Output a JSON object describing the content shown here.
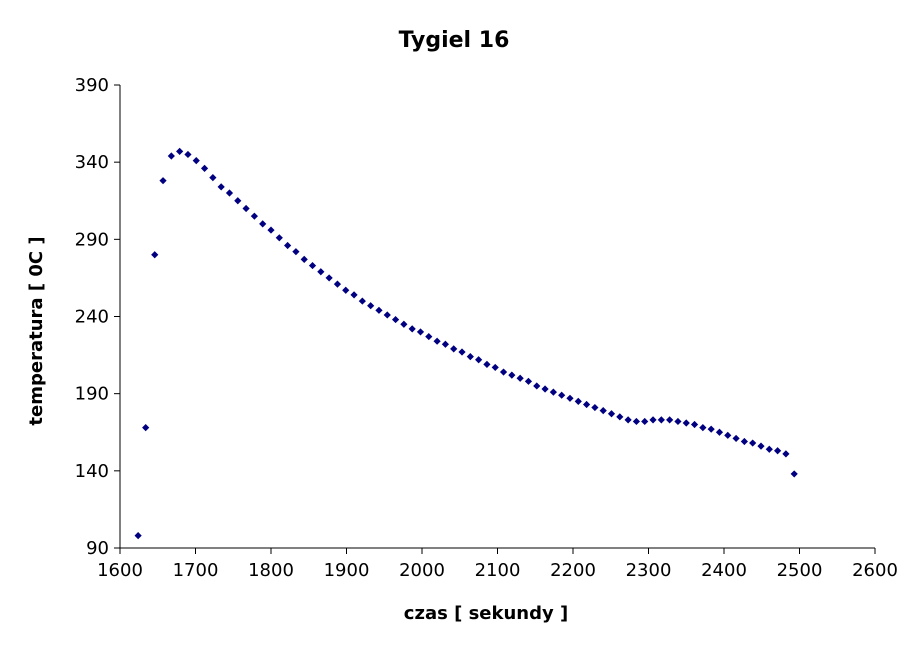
{
  "chart_data": {
    "type": "scatter",
    "title": "Tygiel 16",
    "xlabel": "czas [ sekundy ]",
    "ylabel": "temperatura [ 0C ]",
    "xlim": [
      1600,
      2600
    ],
    "ylim": [
      90,
      390
    ],
    "xticks": [
      1600,
      1700,
      1800,
      1900,
      2000,
      2100,
      2200,
      2300,
      2400,
      2500,
      2600
    ],
    "yticks": [
      90,
      140,
      190,
      240,
      290,
      340,
      390
    ],
    "grid": false,
    "legend": "none",
    "marker": "diamond",
    "color": "#000080",
    "series": [
      {
        "x": [
          1624,
          1634,
          1646,
          1657,
          1668,
          1679,
          1690,
          1701,
          1712,
          1723,
          1734,
          1745,
          1756,
          1767,
          1778,
          1789,
          1800,
          1811,
          1822,
          1833,
          1844,
          1855,
          1866,
          1877,
          1888,
          1899,
          1910,
          1921,
          1932,
          1943,
          1954,
          1965,
          1976,
          1987,
          1998,
          2009,
          2020,
          2031,
          2042,
          2053,
          2064,
          2075,
          2086,
          2097,
          2108,
          2119,
          2130,
          2141,
          2152,
          2163,
          2174,
          2185,
          2196,
          2207,
          2218,
          2229,
          2240,
          2251,
          2262,
          2273,
          2284,
          2295,
          2306,
          2317,
          2328,
          2339,
          2350,
          2361,
          2372,
          2383,
          2394,
          2405,
          2416,
          2427,
          2438,
          2449,
          2460,
          2471,
          2482,
          2493
        ],
        "y": [
          98,
          168,
          280,
          328,
          344,
          347,
          345,
          341,
          336,
          330,
          324,
          320,
          315,
          310,
          305,
          300,
          296,
          291,
          286,
          282,
          277,
          273,
          269,
          265,
          261,
          257,
          254,
          250,
          247,
          244,
          241,
          238,
          235,
          232,
          230,
          227,
          224,
          222,
          219,
          217,
          214,
          212,
          209,
          207,
          204,
          202,
          200,
          198,
          195,
          193,
          191,
          189,
          187,
          185,
          183,
          181,
          179,
          177,
          175,
          173,
          172,
          172,
          173,
          173,
          173,
          172,
          171,
          170,
          168,
          167,
          165,
          163,
          161,
          159,
          158,
          156,
          154,
          153,
          151,
          138
        ]
      }
    ]
  }
}
